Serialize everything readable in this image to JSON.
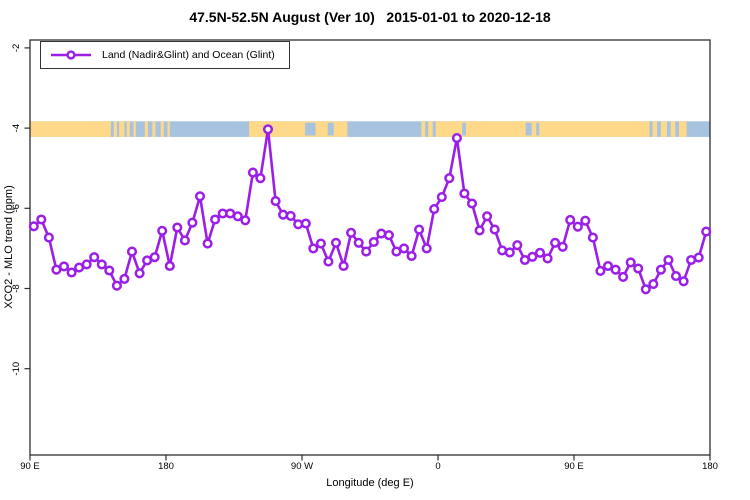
{
  "title": "47.5N-52.5N August (Ver 10)   2015-01-01 to 2020-12-18",
  "legend": {
    "label": "Land (Nadir&Glint) and Ocean (Glint)"
  },
  "axes": {
    "y_label": "XCO2 - MLO trend (ppm)",
    "x_label": "Longitude (deg E)"
  },
  "colors": {
    "series_purple": "#9B1FE8",
    "marker_fill": "#ffffff",
    "land_strip": "#FFD98A",
    "ocean_strip": "#A8C3E0",
    "axis": "#2e2e2e",
    "text": "#000000"
  },
  "chart_data": {
    "type": "line",
    "title": "47.5N-52.5N August (Ver 10)   2015-01-01 to 2020-12-18",
    "xlabel": "Longitude (deg E)",
    "ylabel": "XCO2 - MLO trend (ppm)",
    "series_name": "Land (Nadir&Glint) and Ocean (Glint)",
    "marker": "open-circle",
    "grid": false,
    "legend_position": "top-left",
    "xlim_unwrapped_deg": [
      90,
      540
    ],
    "ylim_ppm": [
      -12.15,
      -1.55
    ],
    "x_ticks": [
      {
        "deg": 90,
        "label": "90 E"
      },
      {
        "deg": 180,
        "label": "180"
      },
      {
        "deg": 270,
        "label": "90 W"
      },
      {
        "deg": 360,
        "label": "0"
      },
      {
        "deg": 450,
        "label": "90 E"
      },
      {
        "deg": 540,
        "label": "180"
      }
    ],
    "y_ticks": [
      -2,
      -4,
      -6,
      -8,
      -10
    ],
    "x_unwrapped_deg": [
      92.5,
      97.5,
      102.5,
      107.5,
      112.5,
      117.5,
      122.5,
      127.5,
      132.5,
      137.5,
      142.5,
      147.5,
      152.5,
      157.5,
      162.5,
      167.5,
      172.5,
      177.5,
      182.5,
      187.5,
      192.5,
      197.5,
      202.5,
      207.5,
      212.5,
      217.5,
      222.5,
      227.5,
      232.5,
      237.5,
      242.5,
      247.5,
      252.5,
      257.5,
      262.5,
      267.5,
      272.5,
      277.5,
      282.5,
      287.5,
      292.5,
      297.5,
      302.5,
      307.5,
      312.5,
      317.5,
      322.5,
      327.5,
      332.5,
      337.5,
      342.5,
      347.5,
      352.5,
      357.5,
      362.5,
      367.5,
      372.5,
      377.5,
      382.5,
      387.5,
      392.5,
      397.5,
      402.5,
      407.5,
      412.5,
      417.5,
      422.5,
      427.5,
      432.5,
      437.5,
      442.5,
      447.5,
      452.5,
      457.5,
      462.5,
      467.5,
      472.5,
      477.5,
      482.5,
      487.5,
      492.5,
      497.5,
      502.5,
      507.5,
      512.5,
      517.5,
      522.5,
      527.5,
      532.5,
      537.5
    ],
    "values_ppm": [
      -6.45,
      -6.28,
      -6.73,
      -7.53,
      -7.45,
      -7.6,
      -7.48,
      -7.4,
      -7.22,
      -7.4,
      -7.55,
      -7.93,
      -7.76,
      -7.08,
      -7.62,
      -7.3,
      -7.22,
      -6.56,
      -7.44,
      -6.48,
      -6.8,
      -6.36,
      -5.7,
      -6.88,
      -6.28,
      -6.13,
      -6.13,
      -6.2,
      -6.3,
      -5.11,
      -5.25,
      -4.03,
      -5.82,
      -6.16,
      -6.19,
      -6.4,
      -6.38,
      -7.0,
      -6.88,
      -7.33,
      -6.86,
      -7.44,
      -6.61,
      -6.86,
      -7.08,
      -6.84,
      -6.63,
      -6.67,
      -7.08,
      -7.0,
      -7.19,
      -6.53,
      -7.0,
      -6.02,
      -5.72,
      -5.25,
      -4.25,
      -5.63,
      -5.88,
      -6.55,
      -6.2,
      -6.53,
      -7.05,
      -7.1,
      -6.92,
      -7.29,
      -7.21,
      -7.11,
      -7.25,
      -6.86,
      -6.96,
      -6.29,
      -6.46,
      -6.31,
      -6.73,
      -7.56,
      -7.44,
      -7.53,
      -7.71,
      -7.35,
      -7.5,
      -8.02,
      -7.89,
      -7.53,
      -7.29,
      -7.69,
      -7.82,
      -7.29,
      -7.23,
      -6.58
    ],
    "map_strip": {
      "description": "land/ocean strip drawn across plot near -4 ppm",
      "y_range_ppm": [
        -3.83,
        -4.22
      ],
      "land_segments_deg": [
        [
          90,
          143.5
        ],
        [
          145.5,
          147.5
        ],
        [
          149,
          152.5
        ],
        [
          154,
          156
        ],
        [
          158.5,
          160
        ],
        [
          166,
          168
        ],
        [
          171,
          173
        ],
        [
          176.5,
          178.5
        ],
        [
          181,
          182.5
        ],
        [
          235,
          300
        ],
        [
          349,
          351.5
        ],
        [
          353.5,
          356.5
        ],
        [
          358.5,
          500
        ],
        [
          502,
          505
        ],
        [
          507.5,
          511.5
        ],
        [
          514,
          517
        ],
        [
          519.5,
          524.5
        ]
      ],
      "ocean_patches_deg": [
        [
          272,
          279
        ],
        [
          287,
          291
        ],
        [
          376,
          378.5
        ],
        [
          418,
          422
        ],
        [
          425,
          427
        ]
      ]
    }
  }
}
